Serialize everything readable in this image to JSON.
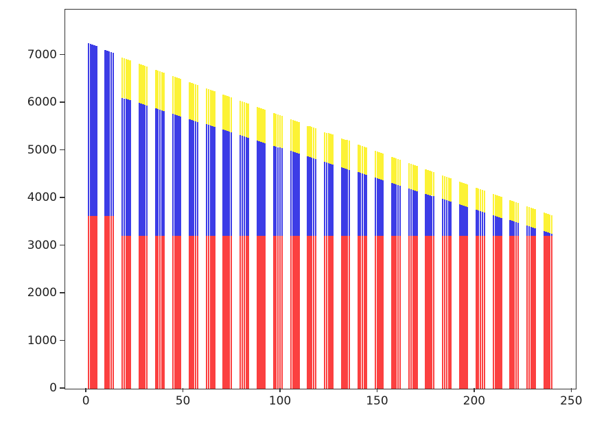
{
  "figure": {
    "background": "#ffffff"
  },
  "chart_data": {
    "type": "bar",
    "variant": "grouped-stacked",
    "title": "",
    "xlabel": "",
    "ylabel": "",
    "grid": false,
    "legend": null,
    "xlim": [
      -11,
      252
    ],
    "ylim": [
      0,
      7960
    ],
    "x_ticks": [
      0,
      50,
      100,
      150,
      200,
      250
    ],
    "y_ticks": [
      0,
      1000,
      2000,
      3000,
      4000,
      5000,
      6000,
      7000
    ],
    "bars_per_group": 5,
    "bar_width": 0.85,
    "intra_group_dx": 1.0,
    "intra_group_dy": -14,
    "segment_order": [
      "red",
      "blue",
      "yellow"
    ],
    "series_colors": {
      "red": "#fb4040",
      "blue": "#3c3ce6",
      "yellow": "#fcf235"
    },
    "values_are": "cumulative stack tops; yellow=null means no yellow segment",
    "groups": [
      {
        "x": 0.6,
        "red": 3630,
        "blue": 7260,
        "yellow": null
      },
      {
        "x": 9.29,
        "red": 3630,
        "blue": 7105,
        "yellow": null
      },
      {
        "x": 17.98,
        "red": 3205,
        "blue": 6110,
        "yellow": 6950
      },
      {
        "x": 26.67,
        "red": 3205,
        "blue": 5998,
        "yellow": 6820
      },
      {
        "x": 35.36,
        "red": 3205,
        "blue": 5886,
        "yellow": 6690
      },
      {
        "x": 44.05,
        "red": 3205,
        "blue": 5774,
        "yellow": 6560
      },
      {
        "x": 52.74,
        "red": 3205,
        "blue": 5662,
        "yellow": 6430
      },
      {
        "x": 61.43,
        "red": 3205,
        "blue": 5550,
        "yellow": 6300
      },
      {
        "x": 70.12,
        "red": 3205,
        "blue": 5438,
        "yellow": 6170
      },
      {
        "x": 78.81,
        "red": 3205,
        "blue": 5326,
        "yellow": 6040
      },
      {
        "x": 87.5,
        "red": 3205,
        "blue": 5214,
        "yellow": 5910
      },
      {
        "x": 96.19,
        "red": 3205,
        "blue": 5102,
        "yellow": 5780
      },
      {
        "x": 104.88,
        "red": 3205,
        "blue": 4990,
        "yellow": 5650
      },
      {
        "x": 113.57,
        "red": 3205,
        "blue": 4878,
        "yellow": 5520
      },
      {
        "x": 122.26,
        "red": 3205,
        "blue": 4766,
        "yellow": 5390
      },
      {
        "x": 130.95,
        "red": 3205,
        "blue": 4654,
        "yellow": 5260
      },
      {
        "x": 139.64,
        "red": 3205,
        "blue": 4542,
        "yellow": 5130
      },
      {
        "x": 148.33,
        "red": 3205,
        "blue": 4430,
        "yellow": 5000
      },
      {
        "x": 157.02,
        "red": 3205,
        "blue": 4318,
        "yellow": 4870
      },
      {
        "x": 165.71,
        "red": 3205,
        "blue": 4206,
        "yellow": 4740
      },
      {
        "x": 174.4,
        "red": 3205,
        "blue": 4094,
        "yellow": 4610
      },
      {
        "x": 183.09,
        "red": 3205,
        "blue": 3982,
        "yellow": 4480
      },
      {
        "x": 191.78,
        "red": 3205,
        "blue": 3870,
        "yellow": 4350
      },
      {
        "x": 200.47,
        "red": 3205,
        "blue": 3758,
        "yellow": 4220
      },
      {
        "x": 209.16,
        "red": 3205,
        "blue": 3646,
        "yellow": 4090
      },
      {
        "x": 217.85,
        "red": 3205,
        "blue": 3534,
        "yellow": 3960
      },
      {
        "x": 226.54,
        "red": 3205,
        "blue": 3422,
        "yellow": 3830
      },
      {
        "x": 235.23,
        "red": 3205,
        "blue": 3310,
        "yellow": 3700
      }
    ]
  }
}
